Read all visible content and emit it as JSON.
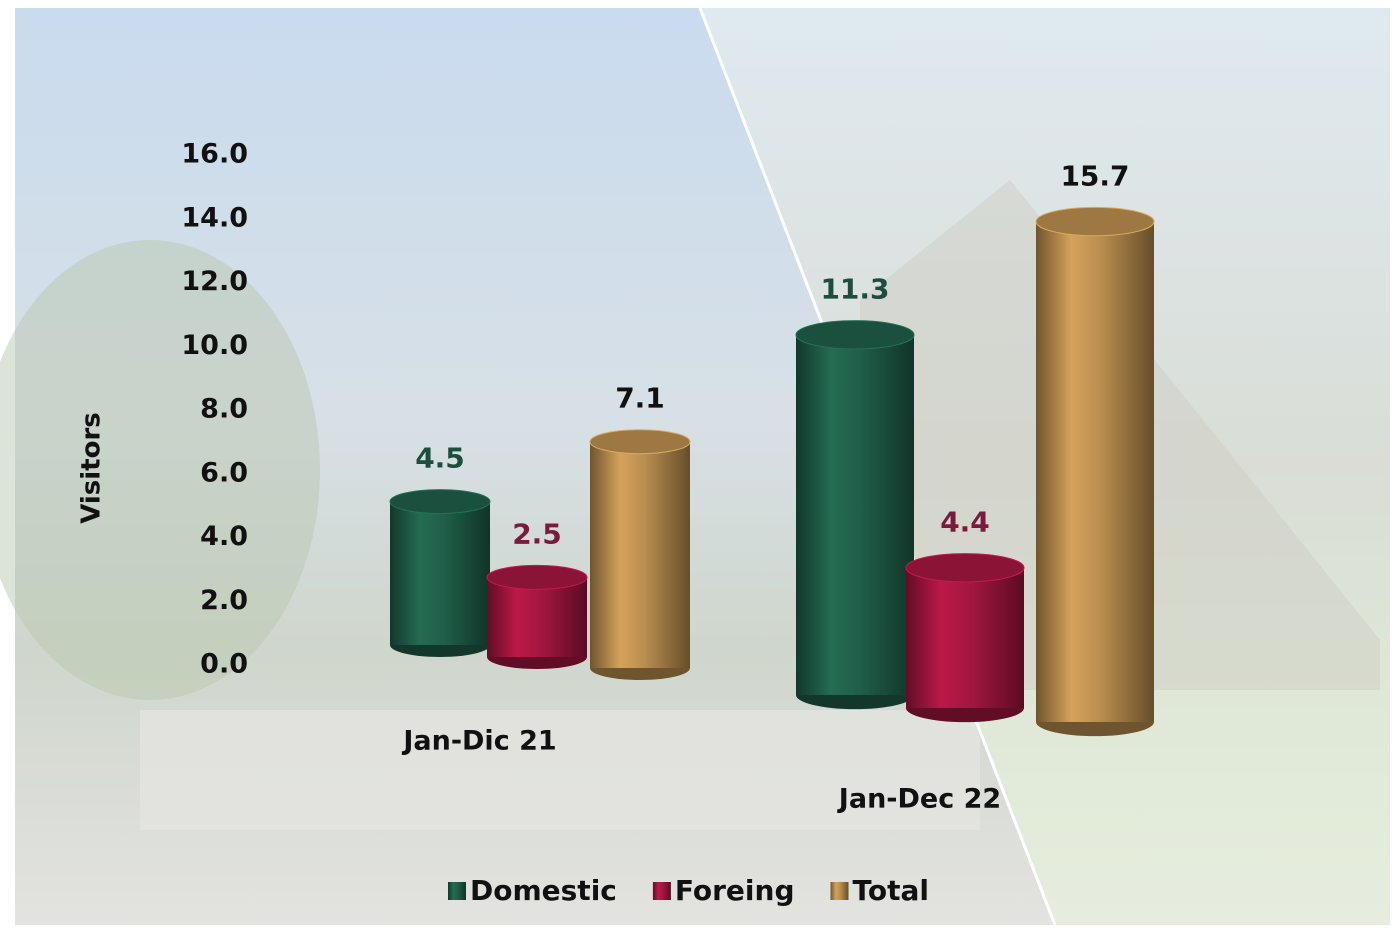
{
  "chart_data": {
    "type": "bar3d",
    "y_label": "Visitors",
    "categories": [
      "Jan-Dic 21",
      "Jan-Dec 22"
    ],
    "series": [
      {
        "name": "Domestic",
        "color": "#1f5e48",
        "values": [
          4.5,
          11.3
        ]
      },
      {
        "name": "Foreing",
        "color": "#a3163f",
        "values": [
          2.5,
          4.4
        ]
      },
      {
        "name": "Total",
        "color": "#b98d4f",
        "values": [
          7.1,
          15.7
        ]
      }
    ],
    "ylim": [
      0,
      16
    ],
    "yticks": [
      {
        "value": 0,
        "label": "0.0"
      },
      {
        "value": 2,
        "label": "2.0"
      },
      {
        "value": 4,
        "label": "4.0"
      },
      {
        "value": 6,
        "label": "6.0"
      },
      {
        "value": 8,
        "label": "8.0"
      },
      {
        "value": 10,
        "label": "10.0"
      },
      {
        "value": 12,
        "label": "12.0"
      },
      {
        "value": 14,
        "label": "14.0"
      },
      {
        "value": 16,
        "label": "16.0"
      }
    ],
    "legend": "bottom"
  }
}
